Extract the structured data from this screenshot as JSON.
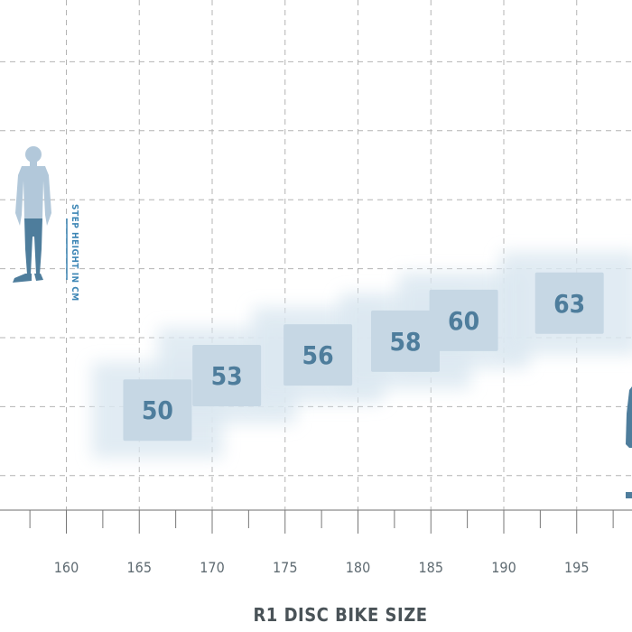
{
  "chart_data": {
    "type": "scatter",
    "title": "",
    "xlabel": "R1 DISC BIKE SIZE",
    "ylabel": "STEP HEIGHT IN CM",
    "x_ticks": [
      160,
      165,
      170,
      175,
      180,
      185,
      190,
      195
    ],
    "xlim": [
      160,
      200
    ],
    "grid": true,
    "legend": "none",
    "points": [
      {
        "size": "50",
        "height_min": 163,
        "height_max": 169.5,
        "step_min": 72,
        "step_max": 77
      },
      {
        "size": "53",
        "height_min": 167.5,
        "height_max": 174.5,
        "step_min": 77,
        "step_max": 82
      },
      {
        "size": "56",
        "height_min": 174,
        "height_max": 180.5,
        "step_min": 80,
        "step_max": 85
      },
      {
        "size": "58",
        "height_min": 180,
        "height_max": 186.5,
        "step_min": 82,
        "step_max": 87
      },
      {
        "size": "60",
        "height_min": 184,
        "height_max": 190.5,
        "step_min": 85,
        "step_max": 90
      },
      {
        "size": "63",
        "height_min": 191,
        "height_max": 198,
        "step_min": 87,
        "step_max": 93
      }
    ],
    "colors": {
      "grid": "#b4b4b4",
      "box_fill": "#c6d7e4",
      "glow": "#dce8f1",
      "label": "#4e7d9c",
      "figure": "#b2c8da",
      "figure_legs": "#4e7d9c",
      "axis_text": "#5f6b72"
    }
  }
}
